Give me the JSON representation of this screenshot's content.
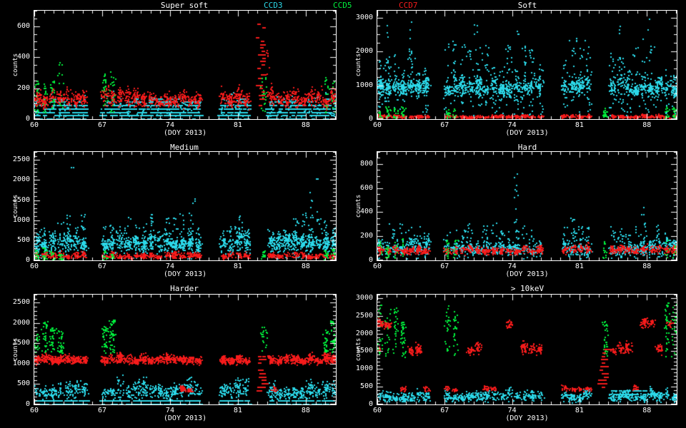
{
  "y_axis_label": "counts",
  "background": "#000000",
  "axis_color": "#ffffff",
  "series_colors": {
    "ccd3": "#2bd8e8",
    "ccd5": "#00ef3c",
    "ccd7": "#f51b1b"
  },
  "legend": [
    {
      "label": "CCD3",
      "series": "ccd3"
    },
    {
      "label": "CCD5",
      "series": "ccd5"
    },
    {
      "label": "CCD7",
      "series": "ccd7"
    }
  ],
  "x_axis": {
    "lim": [
      60,
      91.1
    ],
    "ticks": [
      60,
      67,
      74,
      81,
      88
    ],
    "minor_step": 1,
    "label": "(DOY 2013)"
  },
  "day_groups": {
    "all": [
      60.3,
      61.1,
      61.9,
      62.7,
      63.5,
      64.3,
      65.1,
      67.3,
      68.1,
      68.9,
      69.7,
      70.5,
      71.3,
      72.1,
      72.9,
      73.7,
      74.5,
      75.3,
      76.1,
      76.9,
      79.5,
      80.3,
      81.1,
      81.9,
      84.5,
      85.3,
      86.1,
      86.9,
      87.7,
      88.5,
      89.3,
      90.1,
      90.9
    ],
    "green": [
      60.3,
      61.1,
      61.9,
      62.7,
      67.3,
      68.1,
      83.7,
      90.1,
      90.9
    ]
  },
  "chart_data": [
    {
      "type": "scatter",
      "title": "Super soft",
      "xlabel": "(DOY 2013)",
      "ylabel": "counts",
      "ylim": [
        0,
        700
      ],
      "yticks": [
        0,
        200,
        400,
        600
      ],
      "yminor": 50,
      "clusters": [
        {
          "s": "ccd3",
          "days": "all",
          "w": 0.55,
          "y0": 2,
          "y1": 135,
          "n": 22,
          "st": "dash"
        },
        {
          "s": "ccd3",
          "days": "all",
          "w": 0.4,
          "y0": 15,
          "y1": 165,
          "n": 10,
          "st": "col"
        },
        {
          "s": "ccd5",
          "days": "green",
          "w": 0.35,
          "y0": 40,
          "y1": 345,
          "n": 24,
          "st": "col"
        },
        {
          "s": "ccd7",
          "days": "all",
          "w": 0.5,
          "y0": 55,
          "y1": 235,
          "n": 34,
          "st": "blob"
        },
        {
          "s": "ccd7",
          "days": [
            83.5
          ],
          "w": 0.55,
          "y0": 80,
          "y1": 660,
          "n": 38,
          "st": "dash"
        },
        {
          "s": "ccd7",
          "days": [
            84.1
          ],
          "w": 0.3,
          "y0": 90,
          "y1": 430,
          "n": 14,
          "st": "col"
        }
      ]
    },
    {
      "type": "scatter",
      "title": "Soft",
      "xlabel": "(DOY 2013)",
      "ylabel": "counts",
      "ylim": [
        0,
        3200
      ],
      "yticks": [
        0,
        1000,
        2000,
        3000
      ],
      "yminor": 250,
      "clusters": [
        {
          "s": "ccd3",
          "days": "all",
          "w": 0.5,
          "y0": 600,
          "y1": 1400,
          "n": 40,
          "st": "blob"
        },
        {
          "s": "ccd3",
          "days": "all",
          "w": 0.45,
          "y0": 100,
          "y1": 2250,
          "n": 20,
          "st": "col"
        },
        {
          "s": "ccd3",
          "days": [
            61.0,
            63.4,
            70.3,
            74.5,
            85.2,
            88.3
          ],
          "w": 0.25,
          "y0": 2350,
          "y1": 3100,
          "n": 3,
          "st": "col"
        },
        {
          "s": "ccd7",
          "days": "all",
          "w": 0.45,
          "y0": 5,
          "y1": 160,
          "n": 26,
          "st": "blob"
        },
        {
          "s": "ccd5",
          "days": "green",
          "w": 0.3,
          "y0": 10,
          "y1": 390,
          "n": 15,
          "st": "col"
        }
      ]
    },
    {
      "type": "scatter",
      "title": "Medium",
      "xlabel": "(DOY 2013)",
      "ylabel": "counts",
      "ylim": [
        0,
        2700
      ],
      "yticks": [
        0,
        500,
        1000,
        1500,
        2000,
        2500
      ],
      "yminor": 100,
      "clusters": [
        {
          "s": "ccd3",
          "days": "all",
          "w": 0.5,
          "y0": 140,
          "y1": 780,
          "n": 36,
          "st": "blob"
        },
        {
          "s": "ccd3",
          "days": "all",
          "w": 0.45,
          "y0": 30,
          "y1": 1120,
          "n": 16,
          "st": "col"
        },
        {
          "s": "ccd3",
          "days": [
            63.9
          ],
          "w": 0.2,
          "y0": 2280,
          "y1": 2400,
          "n": 2,
          "st": "col"
        },
        {
          "s": "ccd3",
          "days": [
            89.3
          ],
          "w": 0.2,
          "y0": 1900,
          "y1": 2100,
          "n": 3,
          "st": "col"
        },
        {
          "s": "ccd3",
          "days": [
            76.5,
            88.5
          ],
          "w": 0.25,
          "y0": 1250,
          "y1": 1700,
          "n": 4,
          "st": "col"
        },
        {
          "s": "ccd7",
          "days": "all",
          "w": 0.45,
          "y0": 5,
          "y1": 245,
          "n": 28,
          "st": "blob"
        },
        {
          "s": "ccd5",
          "days": "green",
          "w": 0.3,
          "y0": 10,
          "y1": 300,
          "n": 14,
          "st": "col"
        }
      ]
    },
    {
      "type": "scatter",
      "title": "Hard",
      "xlabel": "(DOY 2013)",
      "ylabel": "counts",
      "ylim": [
        0,
        900
      ],
      "yticks": [
        0,
        200,
        400,
        600,
        800
      ],
      "yminor": 50,
      "clusters": [
        {
          "s": "ccd3",
          "days": "all",
          "w": 0.5,
          "y0": 20,
          "y1": 215,
          "n": 26,
          "st": "blob"
        },
        {
          "s": "ccd3",
          "days": "all",
          "w": 0.45,
          "y0": 10,
          "y1": 335,
          "n": 12,
          "st": "col"
        },
        {
          "s": "ccd3",
          "days": [
            74.5
          ],
          "w": 0.3,
          "y0": 150,
          "y1": 700,
          "n": 13,
          "st": "col"
        },
        {
          "s": "ccd3",
          "days": [
            69.7,
            80.3,
            87.7
          ],
          "w": 0.3,
          "y0": 120,
          "y1": 430,
          "n": 7,
          "st": "col"
        },
        {
          "s": "ccd7",
          "days": "all",
          "w": 0.45,
          "y0": 35,
          "y1": 150,
          "n": 30,
          "st": "blob"
        },
        {
          "s": "ccd5",
          "days": "green",
          "w": 0.3,
          "y0": 5,
          "y1": 175,
          "n": 12,
          "st": "col"
        }
      ]
    },
    {
      "type": "scatter",
      "title": "Harder",
      "xlabel": "(DOY 2013)",
      "ylabel": "counts",
      "ylim": [
        0,
        2700
      ],
      "yticks": [
        0,
        500,
        1000,
        1500,
        2000,
        2500
      ],
      "yminor": 100,
      "clusters": [
        {
          "s": "ccd3",
          "days": "all",
          "w": 0.5,
          "y0": 60,
          "y1": 690,
          "n": 30,
          "st": "blob"
        },
        {
          "s": "ccd3",
          "days": "all",
          "w": 0.5,
          "y0": 2,
          "y1": 130,
          "n": 10,
          "st": "dash"
        },
        {
          "s": "ccd5",
          "days": "green",
          "w": 0.4,
          "y0": 1240,
          "y1": 2060,
          "n": 30,
          "st": "col"
        },
        {
          "s": "ccd7",
          "days": "all",
          "w": 0.5,
          "y0": 950,
          "y1": 1300,
          "n": 42,
          "st": "blob"
        },
        {
          "s": "ccd7",
          "days": [
            75.3,
            76.1,
            84.8
          ],
          "w": 0.4,
          "y0": 270,
          "y1": 500,
          "n": 22,
          "st": "blob"
        },
        {
          "s": "ccd7",
          "days": [
            83.5
          ],
          "w": 0.5,
          "y0": 300,
          "y1": 1560,
          "n": 28,
          "st": "dash"
        }
      ]
    },
    {
      "type": "scatter",
      "title": "> 10keV",
      "xlabel": "(DOY 2013)",
      "ylabel": "counts",
      "ylim": [
        0,
        3100
      ],
      "yticks": [
        0,
        500,
        1000,
        1500,
        2000,
        2500,
        3000
      ],
      "yminor": 100,
      "clusters": [
        {
          "s": "ccd3",
          "days": "all",
          "w": 0.5,
          "y0": 15,
          "y1": 520,
          "n": 30,
          "st": "blob"
        },
        {
          "s": "ccd3",
          "days": [
            84.5,
            85.3,
            86.1,
            86.9,
            87.7,
            88.5
          ],
          "w": 0.5,
          "y0": 280,
          "y1": 420,
          "n": 8,
          "st": "dash"
        },
        {
          "s": "ccd5",
          "days": "green",
          "w": 0.35,
          "y0": 1300,
          "y1": 2760,
          "n": 26,
          "st": "col"
        },
        {
          "s": "ccd7",
          "days": [
            60.3,
            61.1,
            73.7,
            87.7,
            88.5,
            90.5
          ],
          "w": 0.45,
          "y0": 2100,
          "y1": 2460,
          "n": 32,
          "st": "blob"
        },
        {
          "s": "ccd7",
          "days": [
            63.5,
            64.3,
            69.7,
            70.5,
            75.3,
            76.1,
            76.9,
            84.5,
            85.3,
            86.1,
            89.3
          ],
          "w": 0.45,
          "y0": 1350,
          "y1": 1820,
          "n": 30,
          "st": "blob"
        },
        {
          "s": "ccd7",
          "days": [
            62.7,
            65.1,
            67.3,
            68.1,
            71.3,
            72.1,
            79.5,
            80.3,
            81.1,
            81.9,
            86.9
          ],
          "w": 0.4,
          "y0": 330,
          "y1": 590,
          "n": 18,
          "st": "blob"
        },
        {
          "s": "ccd7",
          "days": [
            60.2
          ],
          "w": 0.25,
          "y0": 1450,
          "y1": 1720,
          "n": 12,
          "st": "blob"
        },
        {
          "s": "ccd7",
          "days": [
            83.5
          ],
          "w": 0.5,
          "y0": 500,
          "y1": 2150,
          "n": 30,
          "st": "dash"
        }
      ]
    }
  ]
}
